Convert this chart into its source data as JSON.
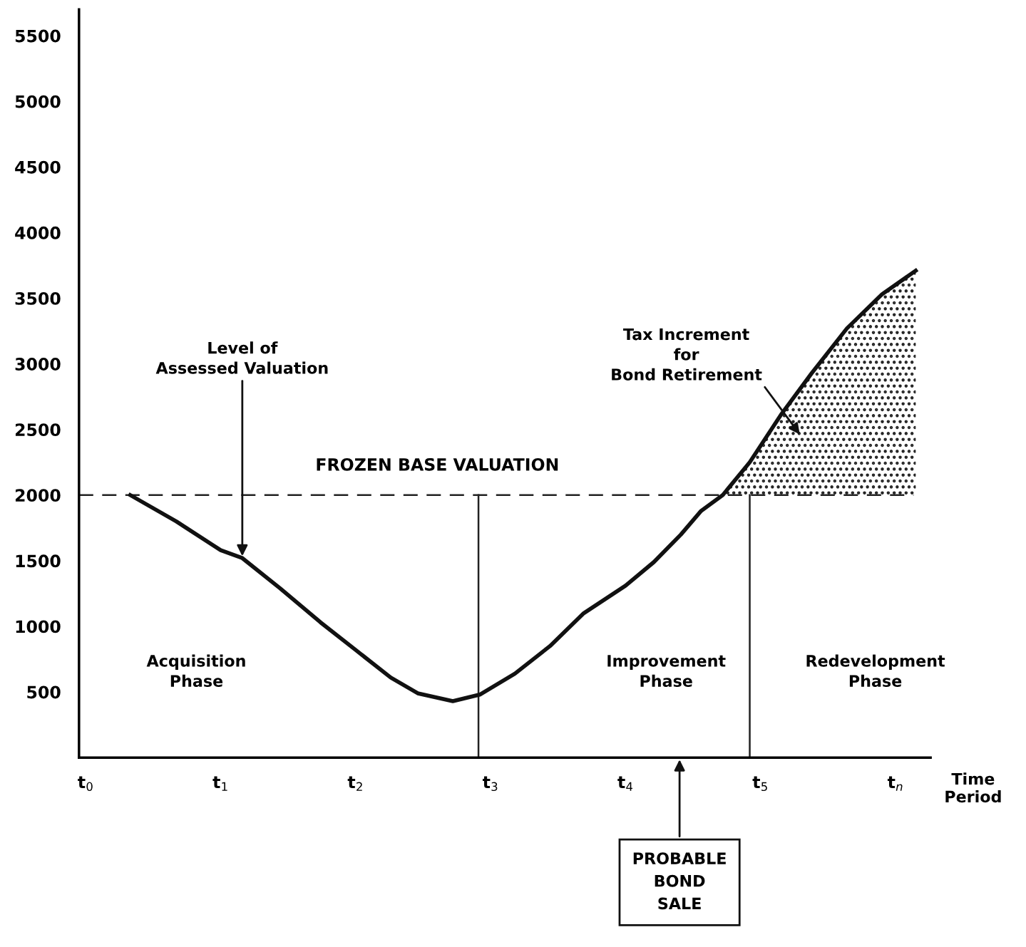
{
  "chart_data": {
    "type": "line",
    "xlabel": "Time\nPeriod",
    "x": [
      0.33,
      0.67,
      1.0,
      1.16,
      1.44,
      1.74,
      2.0,
      2.26,
      2.46,
      2.72,
      2.92,
      3.18,
      3.44,
      3.69,
      4.0,
      4.21,
      4.41,
      4.56,
      4.72,
      4.92,
      5.15,
      5.38,
      5.64,
      5.9,
      6.15
    ],
    "series": [
      {
        "color": "#111111",
        "values": [
          2000,
          1800,
          1580,
          1520,
          1290,
          1030,
          820,
          610,
          490,
          430,
          480,
          640,
          850,
          1100,
          1310,
          1490,
          1700,
          1880,
          2000,
          2250,
          2610,
          2930,
          3270,
          3530,
          3710
        ],
        "lower": [
          null,
          null,
          null,
          null,
          null,
          null,
          null,
          null,
          null,
          null,
          null,
          null,
          null,
          null,
          null,
          null,
          null,
          null,
          2000,
          2000,
          2000,
          2000,
          2000,
          2000,
          2000
        ],
        "upper": [
          null,
          null,
          null,
          null,
          null,
          null,
          null,
          null,
          null,
          null,
          null,
          null,
          null,
          null,
          null,
          null,
          null,
          null,
          2000,
          2250,
          2610,
          2930,
          3270,
          3530,
          3710
        ]
      }
    ],
    "xlim": [
      -0.05,
      6.26
    ],
    "ylim": [
      0,
      5700
    ],
    "xticks": [
      {
        "value": 0,
        "label": "t$_{0}$"
      },
      {
        "value": 1,
        "label": "t$_{1}$"
      },
      {
        "value": 2,
        "label": "t$_{2}$"
      },
      {
        "value": 3,
        "label": "t$_{3}$"
      },
      {
        "value": 4,
        "label": "t$_{4}$"
      },
      {
        "value": 5,
        "label": "t$_{5}$"
      },
      {
        "value": 6,
        "label": "t$_{n}$"
      }
    ],
    "yticks": [
      500,
      1000,
      1500,
      2000,
      2500,
      3000,
      3500,
      4000,
      4500,
      5000,
      5500
    ],
    "ref_lines": [
      {
        "axis": "y",
        "value": 2000,
        "label": "FROZEN BASE VALUATION",
        "line_style": "dashed"
      },
      {
        "axis": "x",
        "value": 2.91
      },
      {
        "axis": "x",
        "value": 4.92
      }
    ],
    "annotations": [
      {
        "text": "Level of\nAssessed Valuation",
        "x": 1.16,
        "y": 1520
      },
      "Tax Increment\nfor\nBond Retirement",
      "PROBABLE\nBOND\nSALE",
      "Acquisition\nPhase",
      "Improvement\nPhase",
      "Redevelopment\nPhase"
    ],
    "grid": false,
    "legend": false,
    "marker": "none",
    "line_style": "solid"
  }
}
